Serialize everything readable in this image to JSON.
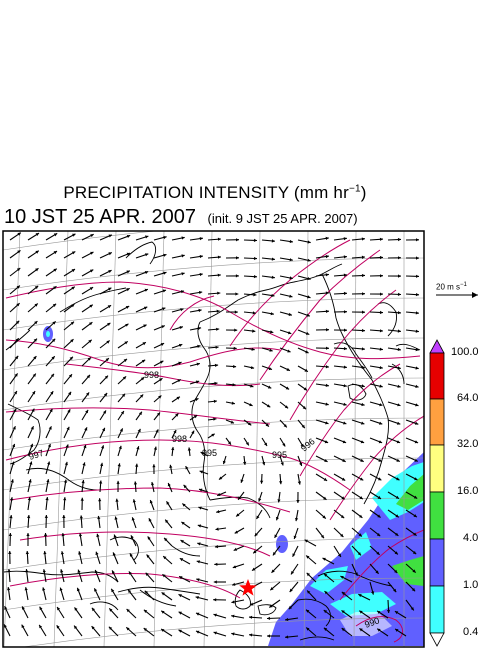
{
  "header": {
    "title_main": "PRECIPITATION INTENSITY (mm hr",
    "title_exp": "−1",
    "title_tail": ")",
    "valid_time": "10 JST 25 APR. 2007",
    "init_time": "(init. 9 JST 25 APR. 2007)"
  },
  "reference_vector": {
    "label_main": "20 m s",
    "label_exp": "−1"
  },
  "legend": {
    "levels": [
      "100.0",
      "64.0",
      "32.0",
      "16.0",
      "4.0",
      "1.0",
      "0.4"
    ],
    "colors": {
      "over": "#c040ff",
      "band_64_100": "#e60000",
      "band_32_64": "#ffa040",
      "band_16_32": "#ffff80",
      "band_4_16": "#40e040",
      "band_1_4": "#6060ff",
      "band_04_1": "#40ffff",
      "under": "#ffffff"
    }
  },
  "isobar_labels": [
    "997",
    "998",
    "998",
    "995",
    "995",
    "996",
    "990"
  ],
  "map_features": {
    "marker": "red-star",
    "wind_arrows": "black",
    "isobars": "#c00060",
    "coastlines": "black",
    "grid": "#999999"
  }
}
